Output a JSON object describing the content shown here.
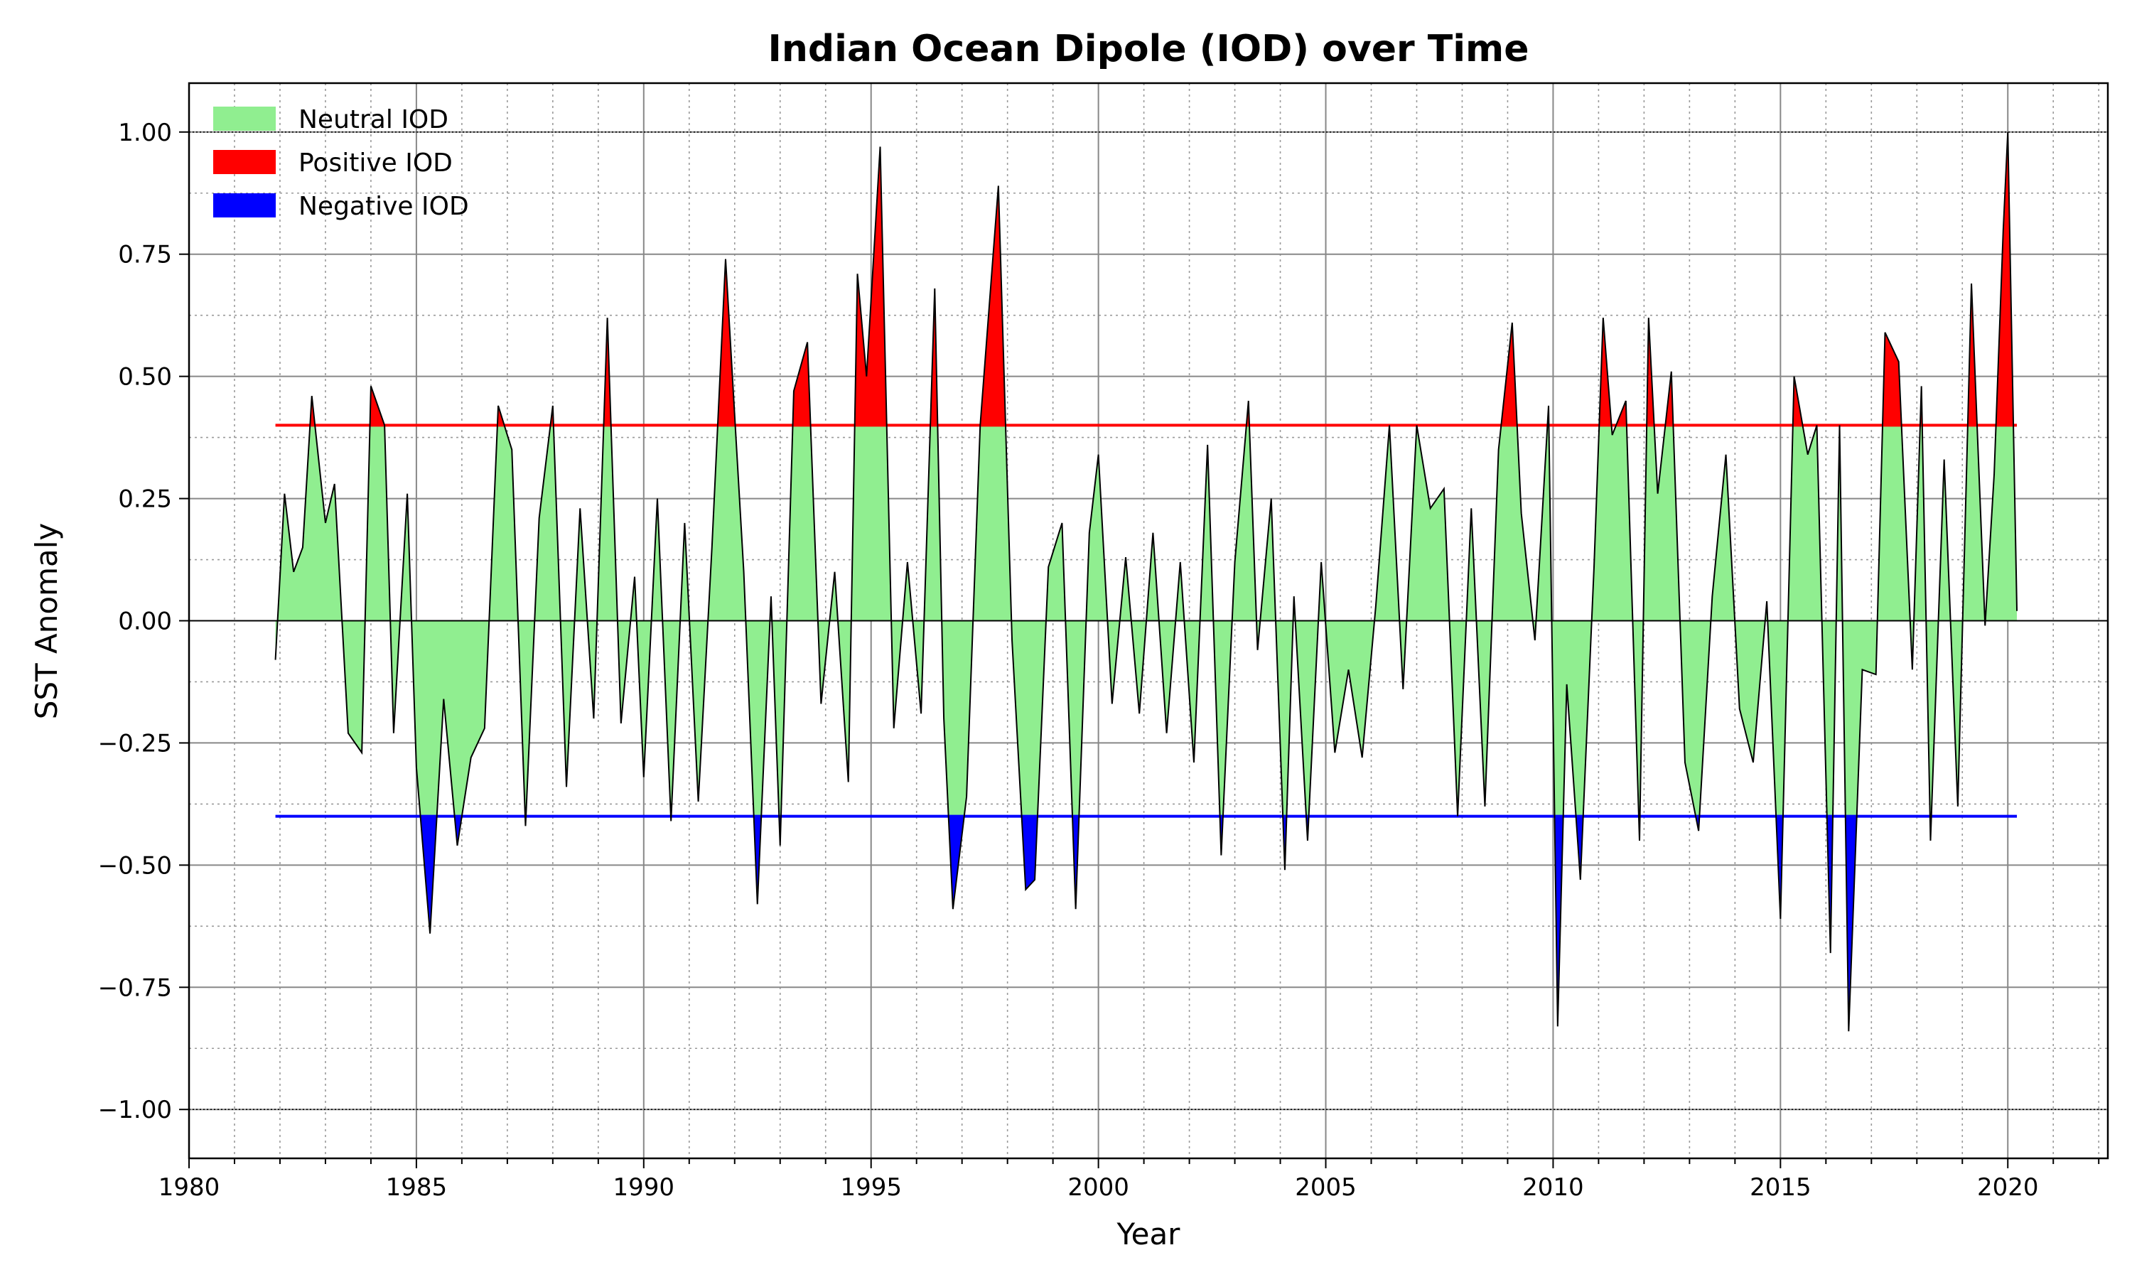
{
  "chart_data": {
    "type": "area",
    "title": "Indian Ocean Dipole (IOD) over Time",
    "xlabel": "Year",
    "ylabel": "SST Anomaly",
    "xlim": [
      1980,
      2022.2
    ],
    "ylim": [
      -1.1,
      1.1
    ],
    "x_ticks": [
      1980,
      1985,
      1990,
      1995,
      2000,
      2005,
      2010,
      2015,
      2020
    ],
    "x_tick_labels": [
      "1980",
      "1985",
      "1990",
      "1995",
      "2000",
      "2005",
      "2010",
      "2015",
      "2020"
    ],
    "y_ticks": [
      -1.0,
      -0.75,
      -0.5,
      -0.25,
      0.0,
      0.25,
      0.5,
      0.75,
      1.0
    ],
    "y_tick_labels": [
      "−1.00",
      "−0.75",
      "−0.50",
      "−0.25",
      "0.00",
      "0.25",
      "0.50",
      "0.75",
      "1.00"
    ],
    "grid": true,
    "legend_position": "top-left",
    "thresholds": {
      "positive": 0.4,
      "negative": -0.4
    },
    "reference_lines": [
      1.0,
      -1.0,
      0.0
    ],
    "colors": {
      "neutral": "#90ee90",
      "positive": "#ff0000",
      "negative": "#0000ff",
      "line": "#000000"
    },
    "legend": [
      {
        "label": "Neutral IOD",
        "color": "#90ee90"
      },
      {
        "label": "Positive IOD",
        "color": "#ff0000"
      },
      {
        "label": "Negative IOD",
        "color": "#0000ff"
      }
    ],
    "series": [
      {
        "name": "IOD",
        "x": [
          1981.9,
          1982.1,
          1982.3,
          1982.5,
          1982.7,
          1983.0,
          1983.2,
          1983.5,
          1983.8,
          1984.0,
          1984.3,
          1984.5,
          1984.8,
          1985.0,
          1985.3,
          1985.6,
          1985.9,
          1986.2,
          1986.5,
          1986.8,
          1987.1,
          1987.4,
          1987.7,
          1988.0,
          1988.3,
          1988.6,
          1988.9,
          1989.2,
          1989.5,
          1989.8,
          1990.0,
          1990.3,
          1990.6,
          1990.9,
          1991.2,
          1991.5,
          1991.8,
          1992.0,
          1992.2,
          1992.5,
          1992.8,
          1993.0,
          1993.3,
          1993.6,
          1993.9,
          1994.2,
          1994.5,
          1994.7,
          1994.9,
          1995.2,
          1995.5,
          1995.8,
          1996.1,
          1996.4,
          1996.6,
          1996.8,
          1997.1,
          1997.4,
          1997.8,
          1998.1,
          1998.4,
          1998.6,
          1998.9,
          1999.2,
          1999.5,
          1999.8,
          2000.0,
          2000.3,
          2000.6,
          2000.9,
          2001.2,
          2001.5,
          2001.8,
          2002.1,
          2002.4,
          2002.7,
          2003.0,
          2003.3,
          2003.5,
          2003.8,
          2004.1,
          2004.3,
          2004.6,
          2004.9,
          2005.2,
          2005.5,
          2005.8,
          2006.1,
          2006.4,
          2006.7,
          2007.0,
          2007.3,
          2007.6,
          2007.9,
          2008.2,
          2008.5,
          2008.8,
          2009.1,
          2009.3,
          2009.6,
          2009.9,
          2010.1,
          2010.3,
          2010.6,
          2010.9,
          2011.1,
          2011.3,
          2011.6,
          2011.9,
          2012.1,
          2012.3,
          2012.6,
          2012.9,
          2013.2,
          2013.5,
          2013.8,
          2014.1,
          2014.4,
          2014.7,
          2015.0,
          2015.3,
          2015.6,
          2015.8,
          2016.1,
          2016.3,
          2016.5,
          2016.8,
          2017.1,
          2017.3,
          2017.6,
          2017.9,
          2018.1,
          2018.3,
          2018.6,
          2018.9,
          2019.2,
          2019.5,
          2019.7,
          2019.9,
          2020.0,
          2020.2
        ],
        "y": [
          -0.08,
          0.26,
          0.1,
          0.15,
          0.46,
          0.2,
          0.28,
          -0.23,
          -0.27,
          0.48,
          0.4,
          -0.23,
          0.26,
          -0.3,
          -0.64,
          -0.16,
          -0.46,
          -0.28,
          -0.22,
          0.44,
          0.35,
          -0.42,
          0.21,
          0.44,
          -0.34,
          0.23,
          -0.2,
          0.62,
          -0.21,
          0.09,
          -0.32,
          0.25,
          -0.41,
          0.2,
          -0.37,
          0.15,
          0.74,
          0.42,
          0.1,
          -0.58,
          0.05,
          -0.46,
          0.47,
          0.57,
          -0.17,
          0.1,
          -0.33,
          0.71,
          0.5,
          0.97,
          -0.22,
          0.12,
          -0.19,
          0.68,
          -0.2,
          -0.59,
          -0.36,
          0.4,
          0.89,
          -0.04,
          -0.55,
          -0.53,
          0.11,
          0.2,
          -0.59,
          0.18,
          0.34,
          -0.17,
          0.13,
          -0.19,
          0.18,
          -0.23,
          0.12,
          -0.29,
          0.36,
          -0.48,
          0.12,
          0.45,
          -0.06,
          0.25,
          -0.51,
          0.05,
          -0.45,
          0.12,
          -0.27,
          -0.1,
          -0.28,
          0.03,
          0.4,
          -0.14,
          0.4,
          0.23,
          0.27,
          -0.4,
          0.23,
          -0.38,
          0.35,
          0.61,
          0.22,
          -0.04,
          0.44,
          -0.83,
          -0.13,
          -0.53,
          0.11,
          0.62,
          0.38,
          0.45,
          -0.45,
          0.62,
          0.26,
          0.51,
          -0.29,
          -0.43,
          0.05,
          0.34,
          -0.18,
          -0.29,
          0.04,
          -0.61,
          0.5,
          0.34,
          0.4,
          -0.68,
          0.4,
          -0.84,
          -0.1,
          -0.11,
          0.59,
          0.53,
          -0.1,
          0.48,
          -0.45,
          0.33,
          -0.38,
          0.69,
          -0.01,
          0.3,
          0.8,
          1.0,
          0.02
        ]
      }
    ]
  }
}
